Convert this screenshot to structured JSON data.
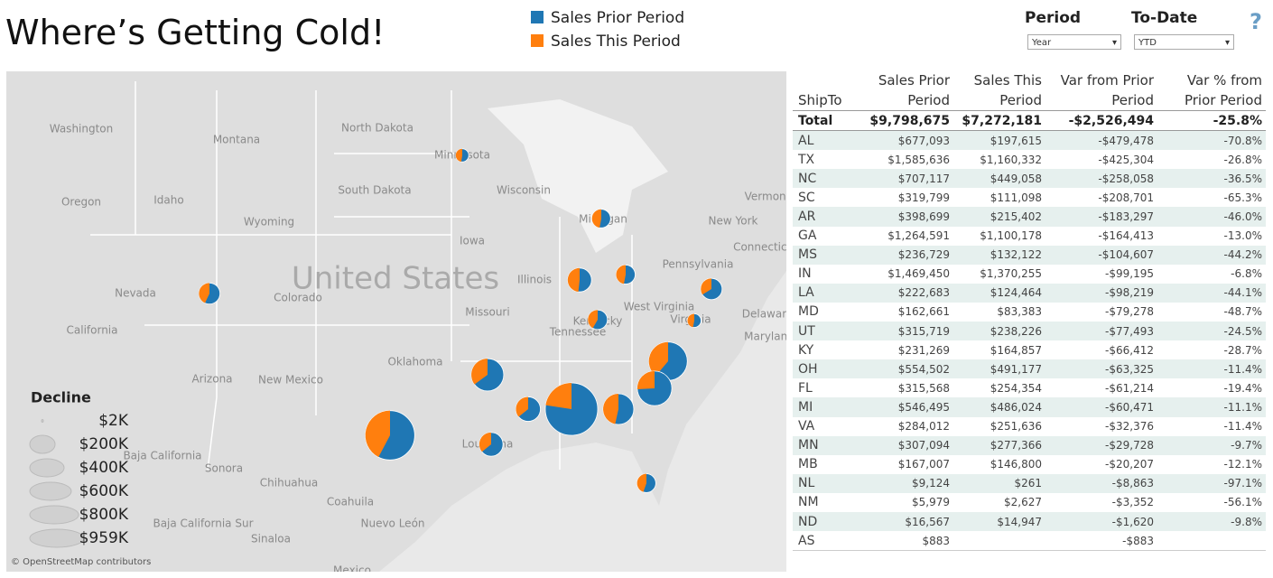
{
  "header": {
    "title": "Where’s Getting Cold!",
    "legend": [
      "Sales Prior Period",
      "Sales This Period"
    ],
    "help": "?"
  },
  "filters": [
    {
      "label": "Period",
      "value": "Year"
    },
    {
      "label": "To-Date",
      "value": "YTD"
    }
  ],
  "map": {
    "labels": [
      "Washington",
      "Montana",
      "North Dakota",
      "South Dakota",
      "Oregon",
      "Idaho",
      "Wyoming",
      "Nevada",
      "Colorado",
      "California",
      "Arizona",
      "New Mexico",
      "Oklahoma",
      "Iowa",
      "Wisconsin",
      "Illinois",
      "Missouri",
      "Tennessee",
      "Pennsylvania",
      "West Virginia",
      "New York",
      "Vermont",
      "Connecticut",
      "Delaware",
      "Maryland",
      "Minnesota",
      "Michigan",
      "Kentucky",
      "Virginia",
      "Louisiana",
      "Baja California",
      "Sonora",
      "Chihuahua",
      "Coahuila",
      "Nuevo León",
      "Baja California Sur",
      "Sinaloa",
      "Mexico",
      "United States"
    ],
    "size_legend": {
      "title": "Decline",
      "items": [
        "$2K",
        "$200K",
        "$400K",
        "$600K",
        "$800K",
        "$959K"
      ]
    },
    "credit": "© OpenStreetMap contributors"
  },
  "table": {
    "columns": [
      "ShipTo",
      "Sales Prior Period",
      "Sales This Period",
      "Var from Prior Period",
      "Var % from Prior Period"
    ],
    "total": [
      "Total",
      "$9,798,675",
      "$7,272,181",
      "-$2,526,494",
      "-25.8%"
    ],
    "rows": [
      [
        "AL",
        "$677,093",
        "$197,615",
        "-$479,478",
        "-70.8%"
      ],
      [
        "TX",
        "$1,585,636",
        "$1,160,332",
        "-$425,304",
        "-26.8%"
      ],
      [
        "NC",
        "$707,117",
        "$449,058",
        "-$258,058",
        "-36.5%"
      ],
      [
        "SC",
        "$319,799",
        "$111,098",
        "-$208,701",
        "-65.3%"
      ],
      [
        "AR",
        "$398,699",
        "$215,402",
        "-$183,297",
        "-46.0%"
      ],
      [
        "GA",
        "$1,264,591",
        "$1,100,178",
        "-$164,413",
        "-13.0%"
      ],
      [
        "MS",
        "$236,729",
        "$132,122",
        "-$104,607",
        "-44.2%"
      ],
      [
        "IN",
        "$1,469,450",
        "$1,370,255",
        "-$99,195",
        "-6.8%"
      ],
      [
        "LA",
        "$222,683",
        "$124,464",
        "-$98,219",
        "-44.1%"
      ],
      [
        "MD",
        "$162,661",
        "$83,383",
        "-$79,278",
        "-48.7%"
      ],
      [
        "UT",
        "$315,719",
        "$238,226",
        "-$77,493",
        "-24.5%"
      ],
      [
        "KY",
        "$231,269",
        "$164,857",
        "-$66,412",
        "-28.7%"
      ],
      [
        "OH",
        "$554,502",
        "$491,177",
        "-$63,325",
        "-11.4%"
      ],
      [
        "FL",
        "$315,568",
        "$254,354",
        "-$61,214",
        "-19.4%"
      ],
      [
        "MI",
        "$546,495",
        "$486,024",
        "-$60,471",
        "-11.1%"
      ],
      [
        "VA",
        "$284,012",
        "$251,636",
        "-$32,376",
        "-11.4%"
      ],
      [
        "MN",
        "$307,094",
        "$277,366",
        "-$29,728",
        "-9.7%"
      ],
      [
        "MB",
        "$167,007",
        "$146,800",
        "-$20,207",
        "-12.1%"
      ],
      [
        "NL",
        "$9,124",
        "$261",
        "-$8,863",
        "-97.1%"
      ],
      [
        "NM",
        "$5,979",
        "$2,627",
        "-$3,352",
        "-56.1%"
      ],
      [
        "ND",
        "$16,567",
        "$14,947",
        "-$1,620",
        "-9.8%"
      ],
      [
        "AS",
        "$883",
        null,
        "-$883",
        null
      ]
    ]
  }
}
